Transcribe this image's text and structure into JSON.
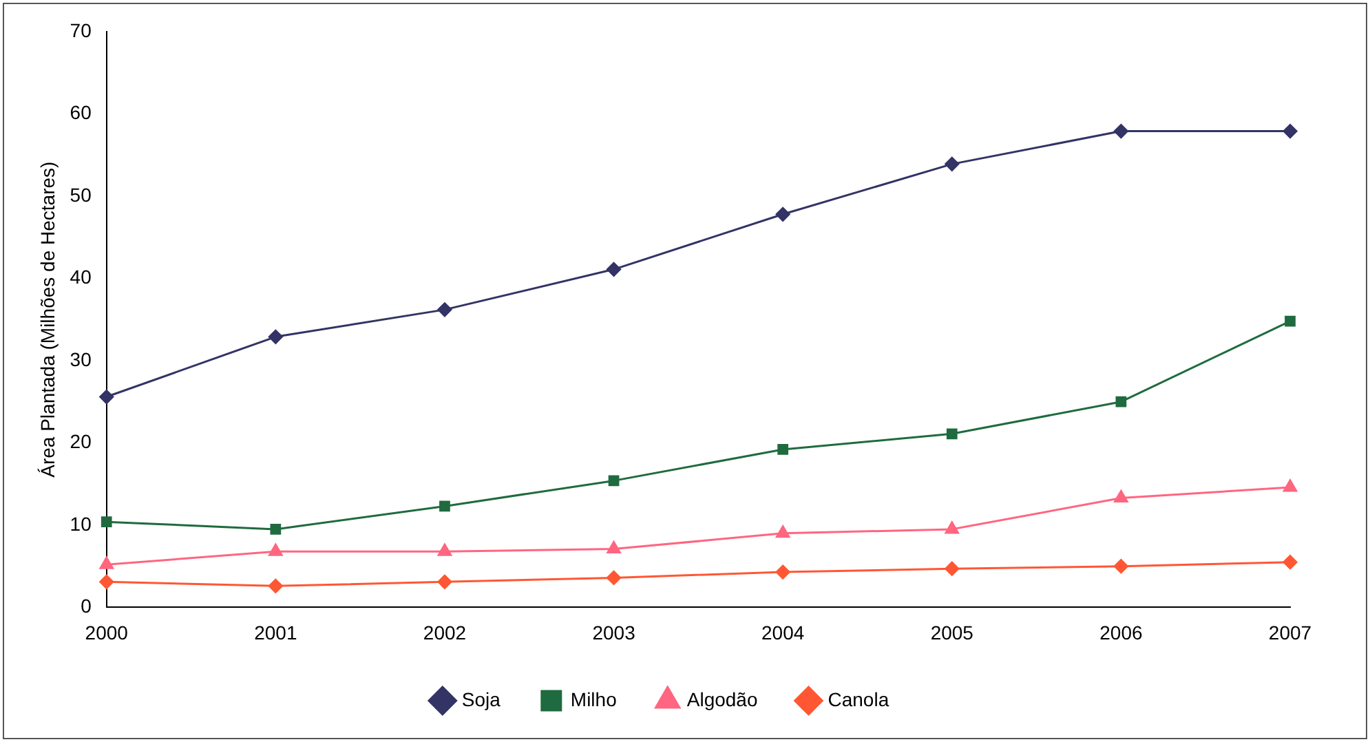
{
  "chart_data": {
    "type": "line",
    "ylabel": "Área Plantada (Milhões de Hectares)",
    "categories": [
      "2000",
      "2001",
      "2002",
      "2003",
      "2004",
      "2005",
      "2006",
      "2007"
    ],
    "series": [
      {
        "name": "Soja",
        "color": "#333366",
        "marker": "diamond",
        "values": [
          25.6,
          32.9,
          36.2,
          41.1,
          47.8,
          53.9,
          57.9,
          57.9
        ]
      },
      {
        "name": "Milho",
        "color": "#1f6b3f",
        "marker": "square",
        "values": [
          10.4,
          9.5,
          12.3,
          15.4,
          19.2,
          21.1,
          25.0,
          34.8
        ]
      },
      {
        "name": "Algodão",
        "color": "#ff6680",
        "marker": "triangle",
        "values": [
          5.2,
          6.8,
          6.8,
          7.1,
          9.0,
          9.5,
          13.3,
          14.6
        ]
      },
      {
        "name": "Canola",
        "color": "#ff5733",
        "marker": "diamond",
        "values": [
          3.1,
          2.6,
          3.1,
          3.6,
          4.3,
          4.7,
          5.0,
          5.5
        ]
      }
    ],
    "ylim": [
      0,
      70
    ],
    "yticks": [
      0,
      10,
      20,
      30,
      40,
      50,
      60,
      70
    ],
    "grid": false,
    "legend": "bottom",
    "line_style": "solid"
  }
}
